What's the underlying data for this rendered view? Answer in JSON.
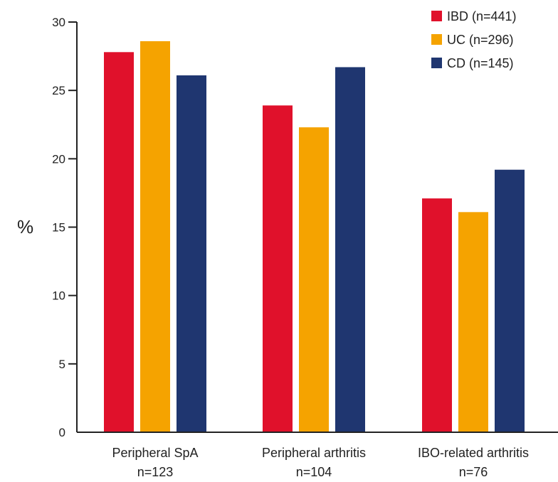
{
  "chart_data": {
    "type": "bar",
    "title": "",
    "xlabel": "",
    "ylabel": "%",
    "ylim": [
      0,
      30
    ],
    "yticks": [
      0,
      5,
      10,
      15,
      20,
      25,
      30
    ],
    "grid": false,
    "legend_position": "top-right",
    "categories": [
      {
        "name": "Peripheral SpA",
        "n_label": "n=123"
      },
      {
        "name": "Peripheral arthritis",
        "n_label": "n=104"
      },
      {
        "name": "IBO-related arthritis",
        "n_label": "n=76"
      }
    ],
    "series": [
      {
        "name": "IBD (n=441)",
        "color": "#E0112B",
        "values": [
          27.8,
          23.9,
          17.1
        ]
      },
      {
        "name": "UC (n=296)",
        "color": "#F5A300",
        "values": [
          28.6,
          22.3,
          16.1
        ]
      },
      {
        "name": "CD (n=145)",
        "color": "#1F3670",
        "values": [
          26.1,
          26.7,
          19.2
        ]
      }
    ]
  }
}
